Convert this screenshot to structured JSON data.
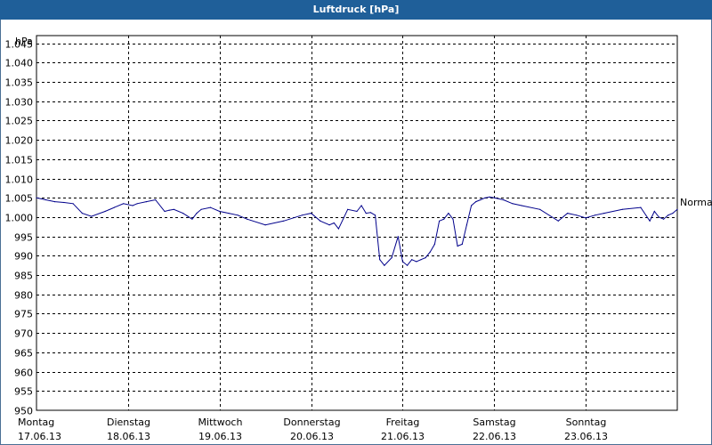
{
  "window": {
    "title": "Luftdruck [hPa]"
  },
  "chart_data": {
    "type": "line",
    "title": "Luftdruck [hPa]",
    "ylabel": "hPa",
    "xlabel": "",
    "ylim": [
      950,
      1047
    ],
    "y_ticks": [
      950,
      955,
      960,
      965,
      970,
      975,
      980,
      985,
      990,
      995,
      1000,
      1005,
      1010,
      1015,
      1020,
      1025,
      1030,
      1035,
      1040,
      1045
    ],
    "y_tick_labels": [
      "950",
      "955",
      "960",
      "965",
      "970",
      "975",
      "980",
      "985",
      "990",
      "995",
      "1.000",
      "1.005",
      "1.010",
      "1.015",
      "1.020",
      "1.025",
      "1.030",
      "1.035",
      "1.040",
      "1.045"
    ],
    "x_ticks": [
      {
        "day": "Montag",
        "date": "17.06.13"
      },
      {
        "day": "Dienstag",
        "date": "18.06.13"
      },
      {
        "day": "Mittwoch",
        "date": "19.06.13"
      },
      {
        "day": "Donnerstag",
        "date": "20.06.13"
      },
      {
        "day": "Freitag",
        "date": "21.06.13"
      },
      {
        "day": "Samstag",
        "date": "22.06.13"
      },
      {
        "day": "Sonntag",
        "date": "23.06.13"
      }
    ],
    "xlim": [
      "17.06.13",
      "24.06.13"
    ],
    "grid": true,
    "annotations": [
      {
        "text": "Normal",
        "y": 1004
      }
    ],
    "series": [
      {
        "color": "#00008b",
        "x_unit": "days since 17.06.13 00:00",
        "x": [
          0.0,
          0.1,
          0.2,
          0.3,
          0.4,
          0.5,
          0.6,
          0.75,
          0.85,
          0.95,
          1.05,
          1.1,
          1.2,
          1.3,
          1.4,
          1.45,
          1.5,
          1.6,
          1.7,
          1.75,
          1.8,
          1.9,
          2.0,
          2.1,
          2.2,
          2.3,
          2.5,
          2.7,
          2.9,
          3.0,
          3.1,
          3.2,
          3.25,
          3.3,
          3.4,
          3.5,
          3.55,
          3.6,
          3.65,
          3.7,
          3.75,
          3.8,
          3.88,
          3.95,
          4.0,
          4.05,
          4.1,
          4.15,
          4.2,
          4.25,
          4.3,
          4.35,
          4.4,
          4.45,
          4.5,
          4.55,
          4.6,
          4.65,
          4.7,
          4.75,
          4.8,
          4.85,
          4.9,
          4.95,
          5.0,
          5.1,
          5.2,
          5.3,
          5.5,
          5.7,
          5.8,
          5.9,
          6.0,
          6.1,
          6.2,
          6.4,
          6.6,
          6.7,
          6.75,
          6.8,
          6.85,
          6.9,
          6.95,
          7.0
        ],
        "y": [
          1005.0,
          1004.5,
          1004.0,
          1003.8,
          1003.5,
          1001.0,
          1000.2,
          1001.5,
          1002.5,
          1003.5,
          1003.0,
          1003.5,
          1004.0,
          1004.5,
          1001.5,
          1001.8,
          1002.0,
          1001.0,
          999.5,
          1001.0,
          1002.0,
          1002.5,
          1001.5,
          1001.0,
          1000.5,
          999.5,
          998.0,
          999.0,
          1000.5,
          1001.0,
          999.0,
          998.0,
          998.5,
          997.0,
          1002.0,
          1001.5,
          1003.0,
          1001.0,
          1001.2,
          1000.5,
          989.0,
          987.5,
          989.5,
          995.0,
          988.5,
          987.5,
          989.0,
          988.5,
          989.0,
          989.5,
          991.0,
          993.0,
          999.0,
          999.5,
          1001.0,
          999.5,
          992.5,
          993.0,
          998.0,
          1003.0,
          1004.0,
          1004.5,
          1005.0,
          1005.2,
          1005.0,
          1004.5,
          1003.5,
          1003.0,
          1002.0,
          999.0,
          1001.0,
          1000.5,
          999.8,
          1000.5,
          1001.0,
          1002.0,
          1002.5,
          999.0,
          1001.5,
          1000.0,
          999.5,
          1000.5,
          1001.0,
          1002.0
        ]
      }
    ]
  }
}
